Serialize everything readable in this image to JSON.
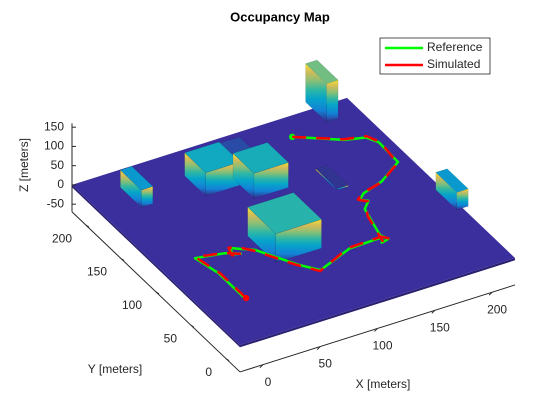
{
  "chart_data": {
    "type": "line3d",
    "title": "Occupancy Map",
    "xlabel": "X [meters]",
    "ylabel": "Y [meters]",
    "zlabel": "Z [meters]",
    "xlim": [
      -20,
      220
    ],
    "ylim": [
      -20,
      220
    ],
    "zlim": [
      -70,
      160
    ],
    "xticks": [
      0,
      50,
      100,
      150,
      200
    ],
    "yticks": [
      0,
      50,
      100,
      150,
      200
    ],
    "zticks": [
      -50,
      0,
      50,
      100,
      150
    ],
    "legend": "upper right",
    "floor_color": "#3b2f9e",
    "obstacles": [
      {
        "x": [
          190,
          200
        ],
        "y": [
          200,
          230
        ],
        "z": [
          0,
          100
        ]
      },
      {
        "x": [
          80,
          120
        ],
        "y": [
          180,
          210
        ],
        "z": [
          0,
          10
        ]
      },
      {
        "x": [
          10,
          20
        ],
        "y": [
          170,
          200
        ],
        "z": [
          0,
          45
        ]
      },
      {
        "x": [
          60,
          90
        ],
        "y": [
          160,
          190
        ],
        "z": [
          0,
          60
        ]
      },
      {
        "x": [
          150,
          160
        ],
        "y": [
          120,
          150
        ],
        "z": [
          0,
          3
        ]
      },
      {
        "x": [
          90,
          120
        ],
        "y": [
          140,
          170
        ],
        "z": [
          0,
          65
        ]
      },
      {
        "x": [
          215,
          225
        ],
        "y": [
          55,
          85
        ],
        "z": [
          0,
          45
        ]
      },
      {
        "x": [
          60,
          100
        ],
        "y": [
          60,
          100
        ],
        "z": [
          0,
          75
        ]
      }
    ],
    "series": [
      {
        "name": "Reference",
        "color": "#00ff00",
        "x": [
          152,
          184,
          200,
          205,
          204,
          180,
          160,
          153,
          158,
          150,
          148,
          142,
          145,
          138,
          142,
          113,
          79,
          68,
          50,
          40,
          35,
          32,
          38,
          28,
          5,
          10,
          10
        ],
        "y": [
          187,
          165,
          160,
          150,
          121,
          105,
          98,
          92,
          88,
          80,
          72,
          45,
          38,
          36,
          42,
          41,
          27,
          41,
          73,
          80,
          84,
          76,
          74,
          80,
          85,
          60,
          24
        ],
        "z": [
          20,
          20,
          20,
          20,
          20,
          20,
          20,
          20,
          20,
          20,
          20,
          20,
          20,
          20,
          20,
          20,
          20,
          20,
          20,
          20,
          20,
          20,
          20,
          20,
          20,
          20,
          20
        ]
      },
      {
        "name": "Simulated",
        "color": "#ff0000",
        "x": [
          152,
          184,
          201,
          206,
          203,
          179,
          159,
          152,
          157,
          151,
          147,
          141,
          146,
          139,
          141,
          112,
          78,
          67,
          49,
          41,
          34,
          31,
          39,
          27,
          6,
          11,
          11
        ],
        "y": [
          187,
          166,
          161,
          149,
          120,
          104,
          99,
          93,
          87,
          79,
          71,
          44,
          37,
          35,
          43,
          42,
          26,
          42,
          72,
          81,
          85,
          75,
          73,
          81,
          86,
          59,
          22
        ],
        "z": [
          20,
          20,
          21,
          21,
          20,
          20,
          19,
          20,
          21,
          20,
          20,
          20,
          21,
          20,
          20,
          20,
          20,
          19,
          20,
          21,
          20,
          20,
          20,
          20,
          20,
          20,
          20
        ]
      }
    ]
  }
}
